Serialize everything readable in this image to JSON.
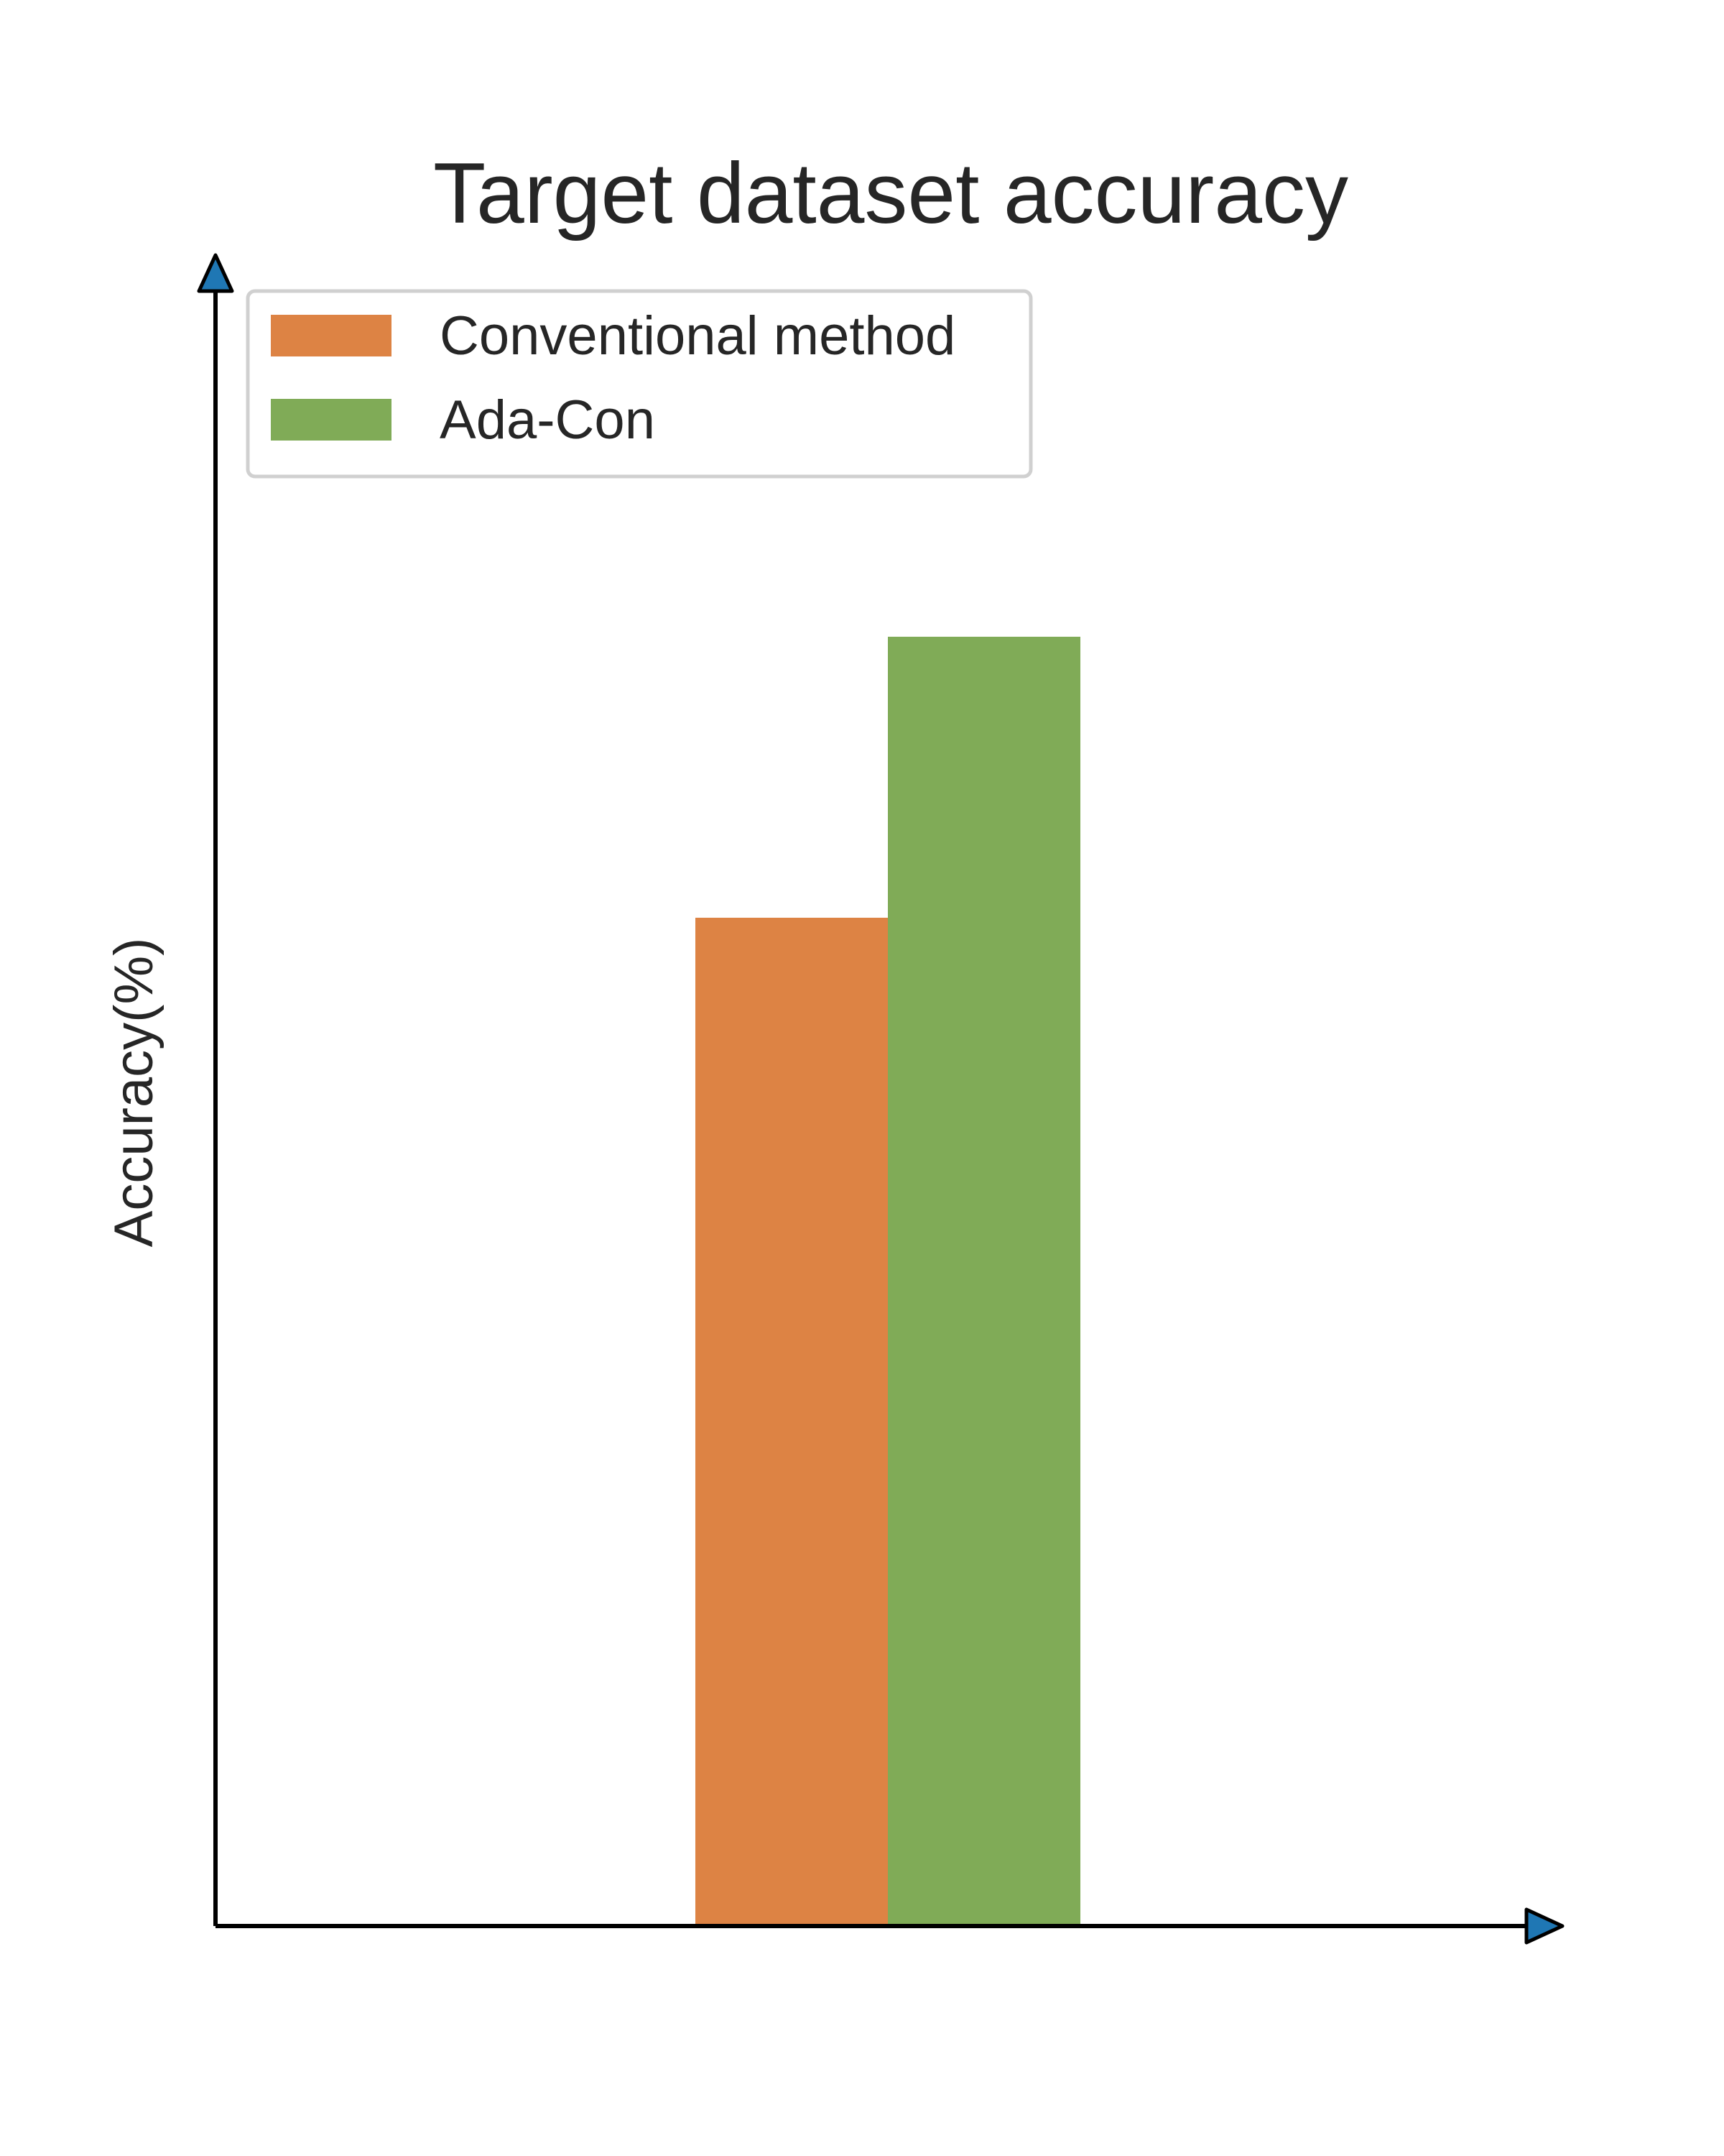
{
  "chart_data": {
    "type": "bar",
    "title": "Target dataset accuracy",
    "xlabel": "",
    "ylabel": "Accuracy(%)",
    "categories": [
      ""
    ],
    "series": [
      {
        "name": "Conventional method",
        "values": [
          61
        ],
        "color": "#dd8344"
      },
      {
        "name": "Ada-Con",
        "values": [
          78
        ],
        "color": "#80ab57"
      }
    ],
    "ylim": [
      0,
      100
    ],
    "grid": false,
    "legend_position": "top-left",
    "axis_arrow_color": "#1f77b4",
    "axis_color": "#000000"
  }
}
